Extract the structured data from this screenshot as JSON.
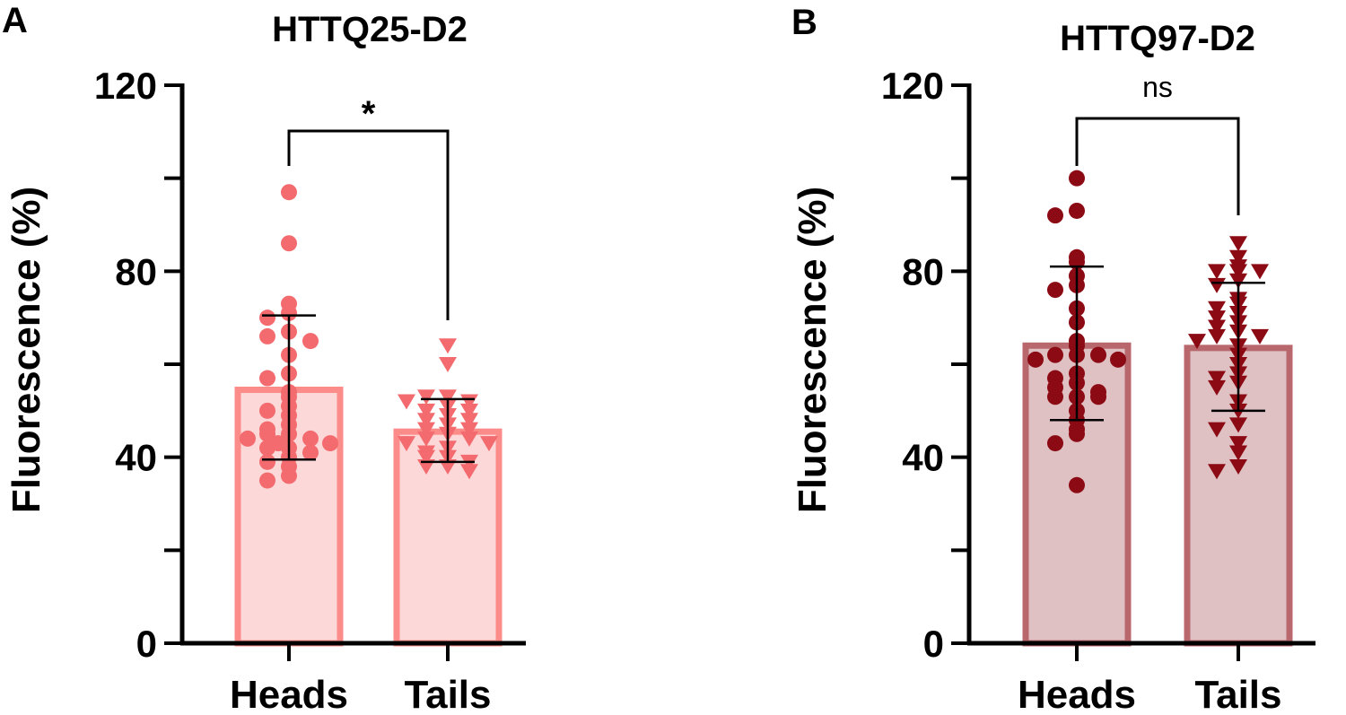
{
  "chart_data": [
    {
      "panel": "A",
      "type": "bar",
      "title": "HTTQ25-D2",
      "xlabel": "",
      "ylabel": "Fluorescence (%)",
      "ylim": [
        0,
        120
      ],
      "yticks": [
        0,
        40,
        80,
        120
      ],
      "categories": [
        "Heads",
        "Tails"
      ],
      "bar_color": "#fb8c8a",
      "bar_fill": "#fdd8d8",
      "point_color": "#f36b6e",
      "significance": "*",
      "bars": [
        {
          "category": "Heads",
          "mean": 54.5,
          "sd_low": 39.5,
          "sd_high": 70.5,
          "marker": "circle",
          "points": [
            97,
            86,
            73,
            71,
            70,
            67,
            66,
            65,
            62,
            58,
            57,
            54,
            53,
            51,
            50,
            49,
            47,
            46,
            45,
            45,
            44,
            44,
            43,
            43,
            42,
            42,
            41,
            40,
            39,
            38,
            36,
            35
          ]
        },
        {
          "category": "Tails",
          "mean": 45.5,
          "sd_low": 39.0,
          "sd_high": 52.5,
          "marker": "triangle-down",
          "points": [
            64,
            60,
            53,
            53,
            52,
            52,
            51,
            50,
            50,
            49,
            48,
            48,
            47,
            46,
            46,
            45,
            44,
            44,
            43,
            43,
            42,
            41,
            40,
            40,
            39,
            38,
            38,
            37
          ]
        }
      ]
    },
    {
      "panel": "B",
      "type": "bar",
      "title": "HTTQ97-D2",
      "xlabel": "",
      "ylabel": "Fluorescence (%)",
      "ylim": [
        0,
        120
      ],
      "yticks": [
        0,
        40,
        80,
        120
      ],
      "categories": [
        "Heads",
        "Tails"
      ],
      "bar_color": "#b8676c",
      "bar_fill": "#dfc0c3",
      "point_color": "#8b0a14",
      "significance": "ns",
      "bars": [
        {
          "category": "Heads",
          "mean": 64.0,
          "sd_low": 48.0,
          "sd_high": 81.0,
          "marker": "circle",
          "points": [
            100,
            93,
            92,
            83,
            82,
            79,
            77,
            76,
            72,
            69,
            65,
            64,
            62,
            62,
            62,
            61,
            61,
            58,
            57,
            56,
            55,
            54,
            53,
            53,
            53,
            50,
            48,
            46,
            45,
            43,
            34
          ]
        },
        {
          "category": "Tails",
          "mean": 63.5,
          "sd_low": 50.0,
          "sd_high": 77.5,
          "marker": "triangle-down",
          "points": [
            86,
            83,
            81,
            80,
            80,
            80,
            78,
            77,
            74,
            73,
            72,
            71,
            70,
            69,
            68,
            67,
            66,
            66,
            65,
            64,
            62,
            60,
            58,
            57,
            56,
            55,
            52,
            50,
            47,
            46,
            43,
            41,
            38,
            37
          ]
        }
      ]
    }
  ]
}
